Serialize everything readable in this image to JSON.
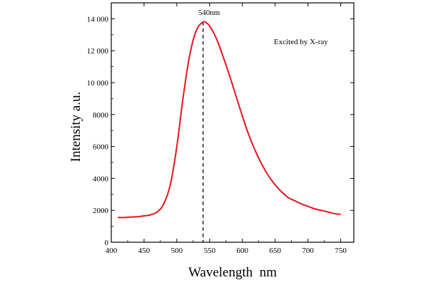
{
  "chart_data": {
    "type": "line",
    "title": "",
    "xlabel": "Wavelength  nm",
    "ylabel": "Intensity a.u.",
    "xlim": [
      400,
      770
    ],
    "ylim": [
      0,
      15000
    ],
    "x_ticks": [
      400,
      450,
      500,
      550,
      600,
      650,
      700,
      750
    ],
    "y_ticks": [
      0,
      2000,
      4000,
      6000,
      8000,
      10000,
      12000,
      14000
    ],
    "x_tick_labels": [
      "400",
      "450",
      "500",
      "550",
      "600",
      "650",
      "700",
      "750"
    ],
    "y_tick_labels": [
      "0",
      "2000",
      "4000",
      "6000",
      "8000",
      "10 000",
      "12 000",
      "14 000"
    ],
    "grid": false,
    "line_color": "#e8141b",
    "annotation": "Excited by X-ray",
    "peak": {
      "x": 540,
      "y": 13800,
      "label": "540nm"
    },
    "series": [
      {
        "x": [
          410,
          420,
          430,
          440,
          450,
          460,
          470,
          480,
          490,
          500,
          510,
          520,
          530,
          540,
          545,
          550,
          560,
          570,
          580,
          590,
          600,
          610,
          620,
          630,
          640,
          650,
          660,
          670,
          680,
          690,
          700,
          710,
          720,
          730,
          740,
          750
        ],
        "y": [
          1550,
          1550,
          1580,
          1600,
          1650,
          1720,
          1900,
          2400,
          3600,
          6000,
          9200,
          11800,
          13300,
          13800,
          13750,
          13550,
          12800,
          11700,
          10500,
          9200,
          7900,
          6700,
          5700,
          4850,
          4150,
          3600,
          3150,
          2800,
          2600,
          2400,
          2250,
          2100,
          2000,
          1900,
          1800,
          1750
        ]
      }
    ]
  }
}
